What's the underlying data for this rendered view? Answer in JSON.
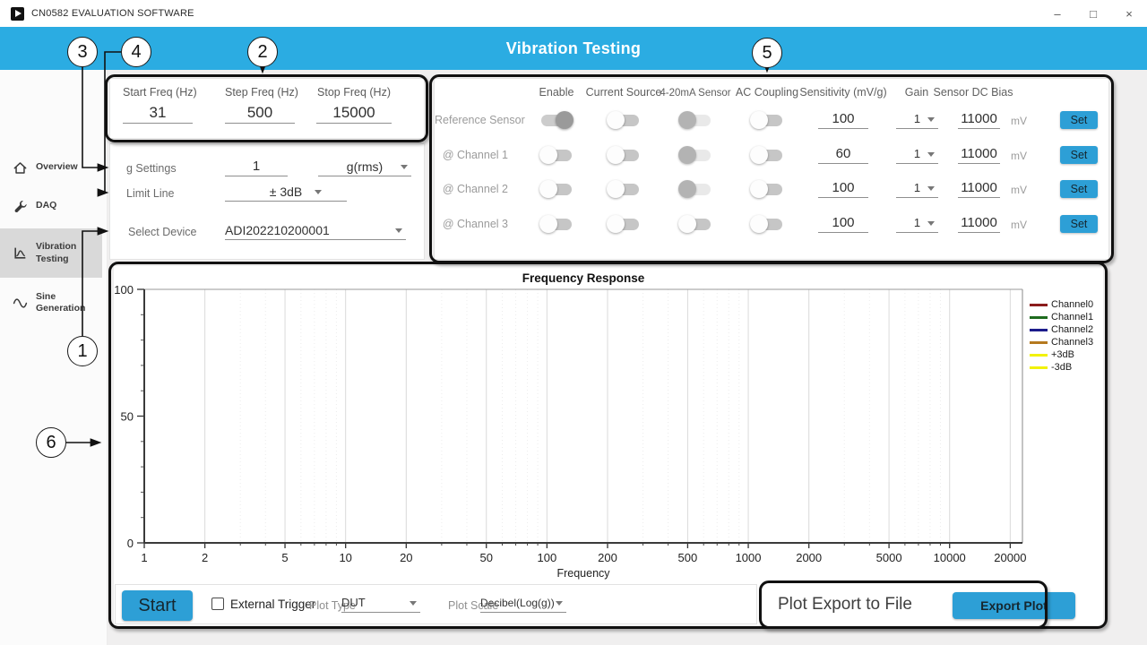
{
  "titlebar": {
    "app_title": "CN0582 EVALUATION SOFTWARE",
    "controls": {
      "minimize": "–",
      "restore": "□",
      "close": "×"
    }
  },
  "header": {
    "title": "Vibration Testing"
  },
  "sidebar": {
    "items": [
      {
        "label": "Overview",
        "icon": "home-icon",
        "selected": false
      },
      {
        "label": "DAQ",
        "icon": "wrench-icon",
        "selected": false
      },
      {
        "label": "Vibration Testing",
        "icon": "vibration-icon",
        "selected": true
      },
      {
        "label": "Sine Generation",
        "icon": "sine-icon",
        "selected": false
      }
    ]
  },
  "freq_panel": {
    "fields": [
      {
        "label": "Start Freq (Hz)",
        "value": "31"
      },
      {
        "label": "Step Freq (Hz)",
        "value": "500"
      },
      {
        "label": "Stop Freq (Hz)",
        "value": "15000"
      }
    ]
  },
  "settings_panel": {
    "g_settings_label": "g Settings",
    "g_value": "1",
    "g_unit": "g(rms)",
    "limit_line_label": "Limit Line",
    "limit_line_value": "± 3dB",
    "select_device_label": "Select Device",
    "device_value": "ADI202210200001"
  },
  "sensor_panel": {
    "columns": [
      "Enable",
      "Current Source",
      "4-20mA Sensor",
      "AC Coupling",
      "Sensitivity (mV/g)",
      "Gain",
      "Sensor DC Bias"
    ],
    "bias_unit": "mV",
    "set_label": "Set",
    "rows": [
      {
        "label": "Reference Sensor",
        "enable": "on",
        "current_source": "off",
        "ma_sensor": "muted",
        "ac_coupling": "off",
        "sensitivity": "100",
        "gain": "1",
        "bias": "11000"
      },
      {
        "label": "@ Channel 1",
        "enable": "off",
        "current_source": "off",
        "ma_sensor": "muted",
        "ac_coupling": "off",
        "sensitivity": "60",
        "gain": "1",
        "bias": "11000"
      },
      {
        "label": "@ Channel 2",
        "enable": "off",
        "current_source": "off",
        "ma_sensor": "muted",
        "ac_coupling": "off",
        "sensitivity": "100",
        "gain": "1",
        "bias": "11000"
      },
      {
        "label": "@ Channel 3",
        "enable": "off",
        "current_source": "off",
        "ma_sensor": "off",
        "ac_coupling": "off",
        "sensitivity": "100",
        "gain": "1",
        "bias": "11000"
      }
    ]
  },
  "chart_data": {
    "type": "line",
    "title": "Frequency Response",
    "xlabel": "Frequency",
    "ylabel": "",
    "x_scale": "log",
    "x_range": [
      1,
      23000
    ],
    "x_ticks": [
      1,
      2,
      5,
      10,
      20,
      50,
      100,
      200,
      500,
      1000,
      2000,
      5000,
      10000,
      20000
    ],
    "ylim": [
      0,
      100
    ],
    "y_ticks": [
      0,
      50,
      100
    ],
    "grid": true,
    "legend_position": "right",
    "series": [
      {
        "name": "Channel0",
        "color": "#8b1c1c",
        "values": []
      },
      {
        "name": "Channel1",
        "color": "#1e6b1e",
        "values": []
      },
      {
        "name": "Channel2",
        "color": "#1c1c8b",
        "values": []
      },
      {
        "name": "Channel3",
        "color": "#b5791f",
        "values": []
      },
      {
        "name": "+3dB",
        "color": "#f2f20a",
        "values": []
      },
      {
        "name": "-3dB",
        "color": "#f2f20a",
        "values": []
      }
    ]
  },
  "bottom_bar": {
    "start_label": "Start",
    "external_trigger_label": "External Trigger",
    "external_trigger_checked": false,
    "plot_type_label": "Plot Type",
    "plot_type_value": "DUT",
    "plot_scale_label": "Plot Scale",
    "plot_scale_value": "Decibel(Log(g))"
  },
  "export_panel": {
    "label": "Plot Export to File",
    "button_label": "Export Plot"
  },
  "annotations": {
    "labels": [
      "1",
      "2",
      "3",
      "4",
      "5",
      "6"
    ]
  },
  "colors": {
    "accent": "#2bace2",
    "button": "#2d9fd6",
    "callout": "#111111",
    "selected_nav": "#d9d9d9"
  }
}
